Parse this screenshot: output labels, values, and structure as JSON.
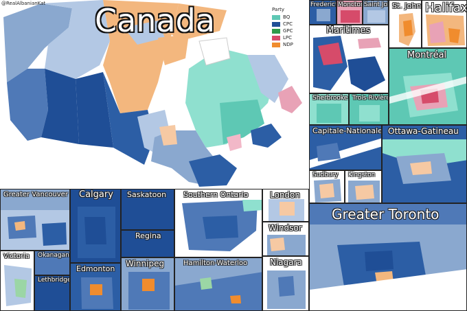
{
  "credit": "@RealAlbanianKat",
  "title": "Canada",
  "legend": {
    "title": "Party",
    "items": [
      {
        "label": "BQ",
        "color": "#5ec8b4"
      },
      {
        "label": "CPC",
        "color": "#1f4e96"
      },
      {
        "label": "GPC",
        "color": "#2e9a4a"
      },
      {
        "label": "LPC",
        "color": "#d64b6a"
      },
      {
        "label": "NDP",
        "color": "#f08c2e"
      }
    ]
  },
  "panels": {
    "fredericton": "Fredericton",
    "moncton": "Moncton",
    "saint_john": "Saint John",
    "st_johns": "St. John's",
    "halifax": "Halifax",
    "maritimes": "Maritimes",
    "montreal": "Montréal",
    "sherbrooke": "Sherbrooke",
    "trois_rivieres": "Trois-Rivières",
    "capitale_nationale": "Capitale-Nationale",
    "ottawa_gatineau": "Ottawa-Gatineau",
    "sudbury": "Sudbury",
    "kingston": "Kingston",
    "greater_toronto": "Greater Toronto",
    "greater_vancouver": "Greater Vancouver",
    "victoria": "Victoria",
    "okanagan": "Okanagan",
    "lethbridge": "Lethbridge",
    "calgary": "Calgary",
    "edmonton": "Edmonton",
    "saskatoon": "Saskatoon",
    "regina": "Regina",
    "winnipeg": "Winnipeg",
    "southern_ontario": "Southern Ontario",
    "hamilton_waterloo": "Hamilton-Waterloo",
    "london": "London",
    "windsor": "Windsor",
    "niagara": "Niagara"
  }
}
